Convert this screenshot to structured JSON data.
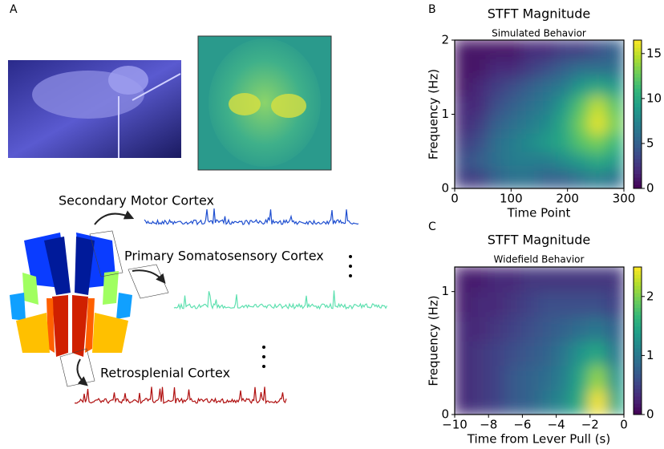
{
  "panel_labels": [
    "A",
    "B",
    "C"
  ],
  "illustration": {
    "regions": [
      "Secondary Motor Cortex",
      "Primary Somatosensory Cortex",
      "Retrosplenial Cortex"
    ]
  },
  "chart_data": [
    {
      "type": "heatmap",
      "title": "STFT Magnitude",
      "subtitle": "Simulated Behavior",
      "x_label": "Time Point",
      "y_label": "Frequency (Hz)",
      "x": [
        15,
        45,
        75,
        105,
        135,
        165,
        195,
        225,
        255,
        285
      ],
      "y": [
        0.125,
        0.375,
        0.625,
        0.875,
        1.125,
        1.375,
        1.625,
        1.875
      ],
      "z": [
        [
          3,
          3,
          5,
          6,
          6,
          5,
          5,
          6,
          7,
          6
        ],
        [
          4,
          5,
          6,
          7,
          7,
          7,
          8,
          9,
          10,
          9
        ],
        [
          3,
          4,
          6,
          7,
          8,
          9,
          10,
          12,
          13,
          11
        ],
        [
          2,
          3,
          5,
          6,
          7,
          8,
          10,
          13,
          16,
          13
        ],
        [
          2,
          2,
          4,
          5,
          6,
          7,
          9,
          12,
          15,
          12
        ],
        [
          1,
          2,
          3,
          4,
          5,
          6,
          7,
          9,
          10,
          9
        ],
        [
          1,
          1,
          2,
          2,
          3,
          4,
          5,
          6,
          6,
          6
        ],
        [
          1,
          1,
          1,
          1,
          2,
          2,
          3,
          3,
          4,
          5
        ]
      ],
      "xlim": [
        0,
        300
      ],
      "ylim": [
        0,
        2
      ],
      "xticks": [
        0,
        100,
        200,
        300
      ],
      "yticks": [
        0,
        1,
        2
      ],
      "colormap": "viridis",
      "clim": [
        0,
        16.5
      ],
      "cticks": [
        0,
        5,
        10,
        15
      ]
    },
    {
      "type": "heatmap",
      "title": "STFT Magnitude",
      "subtitle": "Widefield Behavior",
      "x_label": "Time from Lever Pull (s)",
      "y_label": "Frequency (Hz)",
      "x": [
        -9.5,
        -8.5,
        -7.5,
        -6.5,
        -5.5,
        -4.5,
        -3.5,
        -2.5,
        -1.5,
        -0.5
      ],
      "y": [
        0.1,
        0.3,
        0.5,
        0.7,
        0.9,
        1.1
      ],
      "z": [
        [
          0.3,
          0.4,
          0.5,
          0.7,
          0.8,
          1.0,
          1.2,
          1.6,
          2.5,
          1.5
        ],
        [
          0.3,
          0.4,
          0.5,
          0.7,
          0.8,
          0.9,
          1.1,
          1.5,
          2.1,
          1.3
        ],
        [
          0.3,
          0.4,
          0.5,
          0.6,
          0.7,
          0.8,
          1.0,
          1.3,
          1.5,
          1.0
        ],
        [
          0.3,
          0.3,
          0.4,
          0.5,
          0.6,
          0.7,
          0.8,
          0.9,
          1.0,
          0.8
        ],
        [
          0.2,
          0.3,
          0.3,
          0.4,
          0.5,
          0.6,
          0.6,
          0.6,
          0.6,
          0.5
        ],
        [
          0.2,
          0.2,
          0.3,
          0.3,
          0.4,
          0.4,
          0.4,
          0.4,
          0.4,
          0.4
        ]
      ],
      "xlim": [
        -10,
        0
      ],
      "ylim": [
        0,
        1.2
      ],
      "xticks": [
        {
          "value": -10,
          "label": "−10"
        },
        {
          "value": -8,
          "label": "−8"
        },
        {
          "value": -6,
          "label": "−6"
        },
        {
          "value": -4,
          "label": "−4"
        },
        {
          "value": -2,
          "label": "−2"
        },
        0
      ],
      "yticks": [
        0,
        1
      ],
      "colormap": "viridis",
      "clim": [
        0,
        2.5
      ],
      "cticks": [
        0,
        1,
        2
      ]
    }
  ]
}
